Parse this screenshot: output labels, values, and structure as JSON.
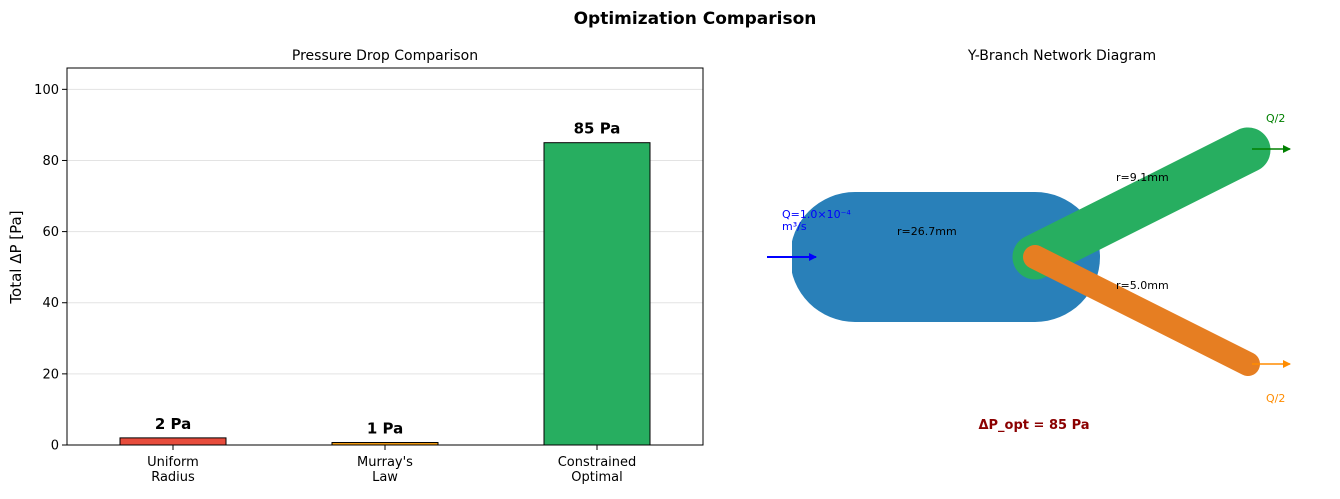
{
  "figure": {
    "title": "Optimization Comparison"
  },
  "chart_data": [
    {
      "type": "bar",
      "title": "Pressure Drop Comparison",
      "ylabel": "Total ΔP [Pa]",
      "xlabel": "",
      "ylim": [
        0,
        106
      ],
      "yticks": [
        0,
        20,
        40,
        60,
        80,
        100
      ],
      "grid": "y",
      "categories": [
        "Uniform\nRadius",
        "Murray's\nLaw",
        "Constrained\nOptimal"
      ],
      "values": [
        2,
        0.7,
        85
      ],
      "bar_labels": [
        "2 Pa",
        "1 Pa",
        "85 Pa"
      ],
      "colors": [
        "#e74c3c",
        "#f39c12",
        "#27ae60"
      ]
    },
    {
      "type": "diagram",
      "title": "Y-Branch Network Diagram",
      "parent": {
        "label": "r=26.7mm",
        "color": "#2980b9"
      },
      "upper_branch": {
        "label": "r=9.1mm",
        "color": "#27ae60",
        "flow_label": "Q/2",
        "flow_color": "#008000"
      },
      "lower_branch": {
        "label": "r=5.0mm",
        "color": "#e67e22",
        "flow_label": "Q/2",
        "flow_color": "#ff8c00"
      },
      "inflow": {
        "label_line1": "Q=1.0×10⁻⁴",
        "label_line2": "m³/s",
        "color": "#0000ff"
      },
      "annotation": {
        "text": "ΔP_opt = 85 Pa",
        "color": "#8b0000"
      }
    }
  ]
}
